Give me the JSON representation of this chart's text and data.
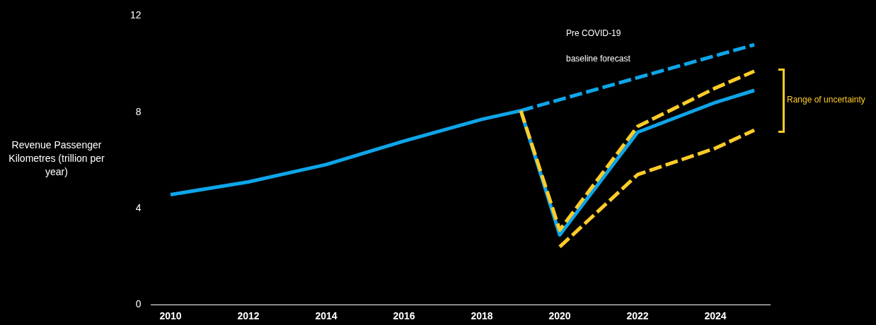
{
  "chart_data": {
    "type": "line",
    "ylabel": "Revenue Passenger Kilometres (trillion per year)",
    "xlim": [
      2009.5,
      2025.4
    ],
    "xticks": [
      2010,
      2012,
      2014,
      2016,
      2018,
      2020,
      2022,
      2024
    ],
    "ylim": [
      0,
      12
    ],
    "yticks": [
      0,
      4,
      8,
      12
    ],
    "grid": false,
    "legend": false,
    "marker": "none",
    "series": [
      {
        "color": "#ffcc29",
        "line_style": "dashed",
        "x": [
          2019,
          2020,
          2022,
          2024,
          2025
        ],
        "values": [
          8.06,
          3.1,
          7.4,
          9.0,
          9.7
        ]
      },
      {
        "color": "#ffcc29",
        "line_style": "dashed",
        "x": [
          2020,
          2022,
          2024,
          2025
        ],
        "values": [
          2.4,
          5.4,
          6.5,
          7.25
        ]
      },
      {
        "color": "#0ea5e9",
        "line_style": "dashed",
        "x": [
          2019,
          2025
        ],
        "values": [
          8.06,
          10.8
        ]
      },
      {
        "color": "#0ea5e9",
        "line_style": "solid",
        "x": [
          2010,
          2012,
          2014,
          2016,
          2018,
          2019,
          2020,
          2022,
          2024,
          2025
        ],
        "values": [
          4.57,
          5.1,
          5.82,
          6.8,
          7.7,
          8.06,
          2.9,
          7.16,
          8.4,
          8.9
        ]
      }
    ],
    "annotations": [
      "Pre COVID-19",
      "baseline forecast",
      "Range of uncertainty"
    ]
  }
}
